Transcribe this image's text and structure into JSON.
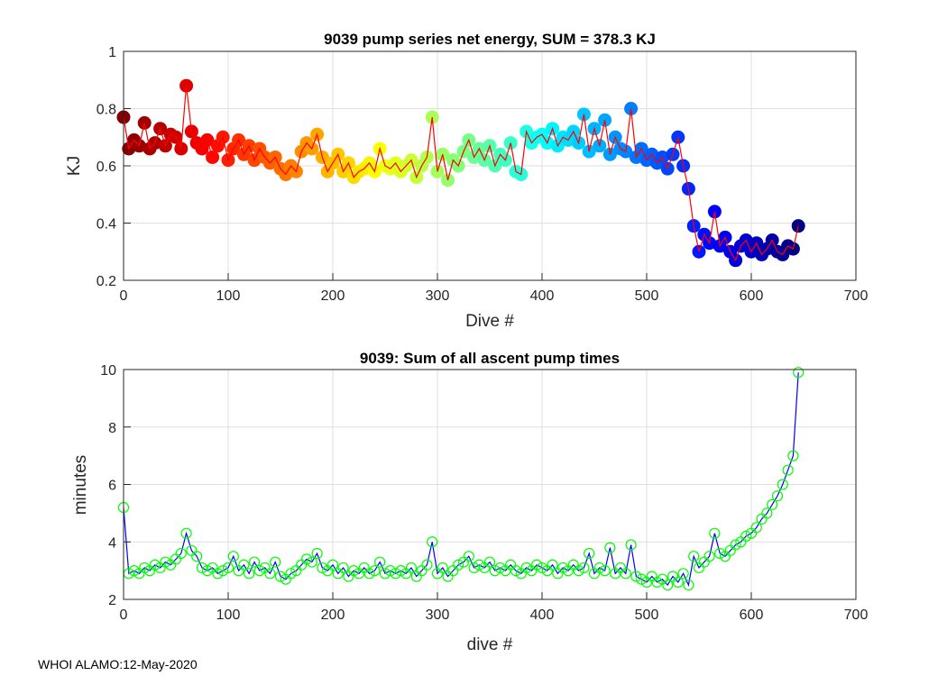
{
  "footer": "WHOI ALAMO:12-May-2020",
  "chart_data": [
    {
      "type": "line",
      "title": "9039 pump series net energy, SUM = 378.3 KJ",
      "xlabel": "Dive #",
      "ylabel": "KJ",
      "xlim": [
        0,
        700
      ],
      "ylim": [
        0.2,
        1
      ],
      "xticks": [
        0,
        100,
        200,
        300,
        400,
        500,
        600,
        700
      ],
      "yticks": [
        0.2,
        0.4,
        0.6,
        0.8,
        1
      ],
      "ytick_labels": [
        "0.2",
        "0.4",
        "0.6",
        "0.8",
        "1"
      ],
      "grid": true,
      "line_color": "#ff0000",
      "marker": "filled circle colored by dive # (reversed jet colormap)",
      "x_start": 0,
      "x_step": 5,
      "values": [
        0.77,
        0.66,
        0.69,
        0.67,
        0.75,
        0.66,
        0.68,
        0.73,
        0.67,
        0.71,
        0.7,
        0.66,
        0.88,
        0.72,
        0.68,
        0.66,
        0.69,
        0.63,
        0.67,
        0.7,
        0.62,
        0.66,
        0.69,
        0.64,
        0.67,
        0.62,
        0.66,
        0.63,
        0.61,
        0.63,
        0.59,
        0.57,
        0.6,
        0.58,
        0.65,
        0.68,
        0.66,
        0.71,
        0.63,
        0.58,
        0.61,
        0.64,
        0.58,
        0.61,
        0.56,
        0.58,
        0.59,
        0.61,
        0.58,
        0.66,
        0.6,
        0.59,
        0.61,
        0.58,
        0.6,
        0.62,
        0.56,
        0.6,
        0.63,
        0.77,
        0.58,
        0.64,
        0.55,
        0.62,
        0.6,
        0.65,
        0.69,
        0.63,
        0.66,
        0.62,
        0.67,
        0.6,
        0.64,
        0.62,
        0.68,
        0.58,
        0.57,
        0.72,
        0.68,
        0.7,
        0.71,
        0.68,
        0.73,
        0.67,
        0.7,
        0.69,
        0.72,
        0.68,
        0.78,
        0.65,
        0.73,
        0.67,
        0.76,
        0.64,
        0.7,
        0.66,
        0.65,
        0.8,
        0.63,
        0.66,
        0.62,
        0.64,
        0.61,
        0.63,
        0.59,
        0.64,
        0.7,
        0.6,
        0.52,
        0.39,
        0.3,
        0.36,
        0.33,
        0.44,
        0.32,
        0.35,
        0.3,
        0.27,
        0.32,
        0.34,
        0.3,
        0.33,
        0.29,
        0.31,
        0.34,
        0.3,
        0.29,
        0.32,
        0.31,
        0.39
      ]
    },
    {
      "type": "line",
      "title": "9039: Sum of all ascent pump times",
      "xlabel": "dive #",
      "ylabel": "minutes",
      "xlim": [
        0,
        700
      ],
      "ylim": [
        2,
        10
      ],
      "xticks": [
        0,
        100,
        200,
        300,
        400,
        500,
        600,
        700
      ],
      "yticks": [
        2,
        4,
        6,
        8,
        10
      ],
      "ytick_labels": [
        "2",
        "4",
        "6",
        "8",
        "10"
      ],
      "grid": true,
      "line_color": "#0000ff",
      "marker_color": "#00ff00",
      "x_start": 0,
      "x_step": 5,
      "values": [
        5.2,
        2.9,
        3.0,
        2.9,
        3.1,
        3.0,
        3.2,
        3.1,
        3.3,
        3.2,
        3.4,
        3.6,
        4.3,
        3.7,
        3.5,
        3.1,
        3.0,
        3.1,
        2.9,
        3.0,
        3.1,
        3.5,
        3.0,
        3.2,
        2.9,
        3.3,
        3.0,
        3.1,
        2.9,
        3.3,
        2.8,
        2.7,
        2.9,
        3.0,
        3.2,
        3.4,
        3.3,
        3.6,
        3.1,
        3.0,
        3.2,
        2.9,
        3.1,
        2.8,
        3.0,
        2.9,
        3.1,
        2.9,
        3.0,
        3.3,
        2.9,
        3.0,
        2.9,
        3.0,
        2.9,
        3.1,
        2.8,
        3.0,
        3.2,
        4.0,
        2.9,
        3.1,
        2.8,
        3.0,
        3.2,
        3.3,
        3.5,
        3.1,
        3.2,
        3.1,
        3.3,
        3.0,
        3.1,
        3.0,
        3.2,
        3.0,
        2.9,
        3.1,
        3.0,
        3.2,
        3.1,
        3.0,
        3.2,
        2.9,
        3.1,
        3.0,
        3.2,
        3.0,
        3.1,
        3.6,
        2.9,
        3.1,
        3.0,
        3.8,
        2.9,
        3.1,
        2.9,
        3.9,
        2.8,
        2.7,
        2.6,
        2.8,
        2.6,
        2.7,
        2.5,
        2.8,
        2.6,
        2.9,
        2.5,
        3.5,
        3.1,
        3.3,
        3.5,
        4.3,
        3.6,
        3.5,
        3.7,
        3.9,
        4.0,
        4.2,
        4.3,
        4.5,
        4.8,
        5.0,
        5.3,
        5.6,
        6.0,
        6.5,
        7.0,
        9.9
      ]
    }
  ]
}
